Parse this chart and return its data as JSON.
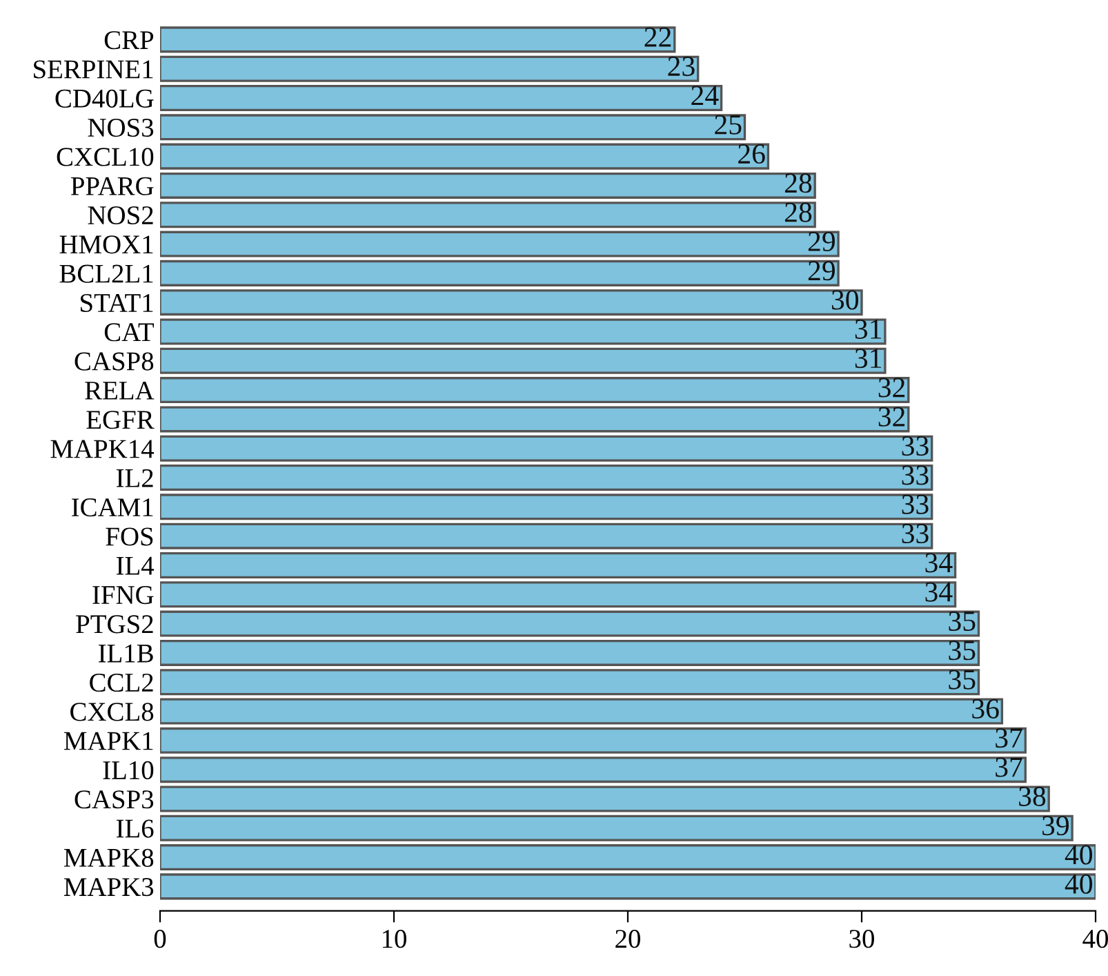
{
  "chart_data": {
    "type": "bar",
    "orientation": "horizontal",
    "categories": [
      "CRP",
      "SERPINE1",
      "CD40LG",
      "NOS3",
      "CXCL10",
      "PPARG",
      "NOS2",
      "HMOX1",
      "BCL2L1",
      "STAT1",
      "CAT",
      "CASP8",
      "RELA",
      "EGFR",
      "MAPK14",
      "IL2",
      "ICAM1",
      "FOS",
      "IL4",
      "IFNG",
      "PTGS2",
      "IL1B",
      "CCL2",
      "CXCL8",
      "MAPK1",
      "IL10",
      "CASP3",
      "IL6",
      "MAPK8",
      "MAPK3"
    ],
    "values": [
      22,
      23,
      24,
      25,
      26,
      28,
      28,
      29,
      29,
      30,
      31,
      31,
      32,
      32,
      33,
      33,
      33,
      33,
      34,
      34,
      35,
      35,
      35,
      36,
      37,
      37,
      38,
      39,
      40,
      40
    ],
    "color": "#7ec2dd",
    "xlim": [
      0,
      40
    ],
    "xticks": [
      0,
      10,
      20,
      30,
      40
    ],
    "data_labels": true
  }
}
